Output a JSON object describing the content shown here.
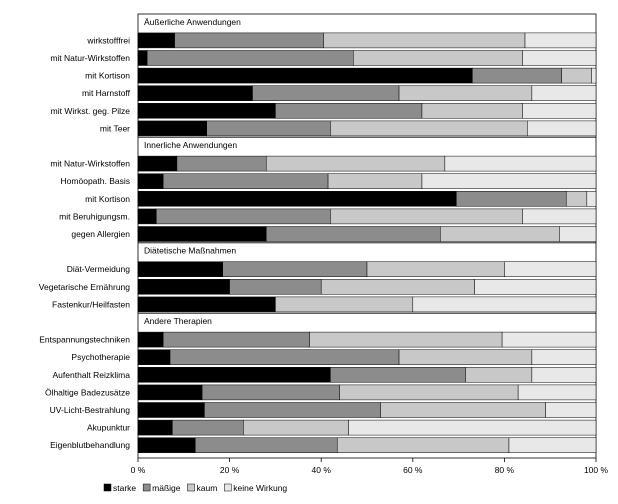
{
  "chart_data": {
    "type": "bar",
    "stacked": true,
    "orientation": "horizontal",
    "xlim": [
      0,
      100
    ],
    "x_ticks": [
      "0 %",
      "20 %",
      "40 %",
      "60 %",
      "80 %",
      "100 %"
    ],
    "grid": false,
    "legend_position": "bottom-left",
    "series": [
      {
        "name": "starke",
        "color": "#000000"
      },
      {
        "name": "mäßige",
        "color": "#8c8c8c"
      },
      {
        "name": "kaum",
        "color": "#c8c8c8"
      },
      {
        "name": "keine Wirkung",
        "color": "#e8e8e8"
      }
    ],
    "groups": [
      {
        "title": "Äußerliche Anwendungen",
        "rows": [
          {
            "label": "wirkstofffrei",
            "values": [
              8,
              32.5,
              44,
              15.5
            ]
          },
          {
            "label": "mit Natur-Wirkstoffen",
            "values": [
              2,
              45,
              37,
              16
            ]
          },
          {
            "label": "mit Kortison",
            "values": [
              73,
              19.5,
              6.5,
              1
            ]
          },
          {
            "label": "mit Harnstoff",
            "values": [
              25,
              32,
              29,
              14
            ]
          },
          {
            "label": "mit Wirkst. geg. Pilze",
            "values": [
              30,
              32,
              22,
              16
            ]
          },
          {
            "label": "mit Teer",
            "values": [
              15,
              27,
              43,
              15
            ]
          }
        ]
      },
      {
        "title": "Innerliche Anwendungen",
        "rows": [
          {
            "label": "mit Natur-Wirkstoffen",
            "values": [
              8.5,
              19.5,
              39,
              33
            ]
          },
          {
            "label": "Homöopath. Basis",
            "values": [
              5.5,
              36,
              20.5,
              38
            ]
          },
          {
            "label": "mit Kortison",
            "values": [
              69.5,
              24,
              4.5,
              2
            ]
          },
          {
            "label": "mit Beruhigungsm.",
            "values": [
              4,
              38,
              42,
              16
            ]
          },
          {
            "label": "gegen Allergien",
            "values": [
              28,
              38,
              26,
              8
            ]
          }
        ]
      },
      {
        "title": "Diätetische Maßnahmen",
        "rows": [
          {
            "label": "Diät-Vermeidung",
            "values": [
              18.5,
              31.5,
              30,
              20
            ]
          },
          {
            "label": "Vegetarische Ernährung",
            "values": [
              20,
              20,
              33.5,
              26.5
            ]
          },
          {
            "label": "Fastenkur/Heilfasten",
            "values": [
              30,
              0,
              30,
              40
            ]
          }
        ]
      },
      {
        "title": "Andere Therapien",
        "rows": [
          {
            "label": "Entspannungstechniken",
            "values": [
              5.5,
              32,
              42,
              20.5
            ]
          },
          {
            "label": "Psychotherapie",
            "values": [
              7,
              50,
              29,
              14
            ]
          },
          {
            "label": "Aufenthalt Reizklima",
            "values": [
              42,
              29.5,
              14.5,
              14
            ]
          },
          {
            "label": "Ölhaltige Badezusätze",
            "values": [
              14,
              30,
              39,
              17
            ]
          },
          {
            "label": "UV-Licht-Bestrahlung",
            "values": [
              14.5,
              38.5,
              36,
              11
            ]
          },
          {
            "label": "Akupunktur",
            "values": [
              7.5,
              15.5,
              23,
              54
            ]
          },
          {
            "label": "Eigenblutbehandlung",
            "values": [
              12.5,
              31,
              37.5,
              19
            ]
          }
        ]
      }
    ]
  }
}
